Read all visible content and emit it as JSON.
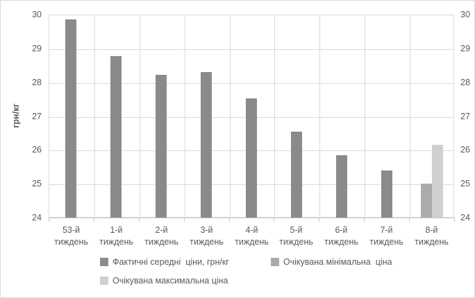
{
  "chart_data": {
    "type": "bar",
    "title": "",
    "ylabel": "грн/кг",
    "xlabel": "",
    "ylim": [
      24,
      30
    ],
    "ytick_step": 1,
    "yticks": [
      24,
      25,
      26,
      27,
      28,
      29,
      30
    ],
    "value_axis_sides": [
      "left",
      "right"
    ],
    "grid": true,
    "legend_position": "bottom",
    "categories": [
      "53-й тиждень",
      "1-й тиждень",
      "2-й тиждень",
      "3-й тиждень",
      "4-й тиждень",
      "5-й тиждень",
      "6-й тиждень",
      "7-й тиждень",
      "8-й тиждень"
    ],
    "series": [
      {
        "name": "Фактичні середні  ціни, грн/кг",
        "color": "#8a8a8a",
        "values": [
          29.85,
          28.77,
          28.22,
          28.3,
          27.52,
          26.53,
          25.85,
          25.4,
          null
        ]
      },
      {
        "name": "Очікувана мінімальна  ціна",
        "color": "#ababab",
        "values": [
          null,
          null,
          null,
          null,
          null,
          null,
          null,
          null,
          25.0
        ]
      },
      {
        "name": "Очікувана максимальна ціна",
        "color": "#d0d0d0",
        "values": [
          null,
          null,
          null,
          null,
          null,
          null,
          null,
          null,
          26.15
        ]
      }
    ],
    "colors": {
      "gridline": "#d9d9d9",
      "axis_line": "#c9c9c9",
      "text": "#595959",
      "frame_border": "#d9d9d9",
      "background": "#ffffff"
    }
  }
}
